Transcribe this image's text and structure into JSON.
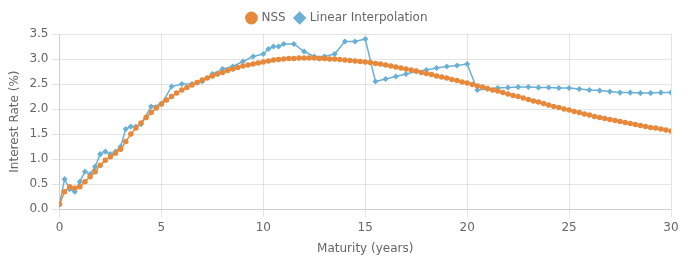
{
  "chart_data": {
    "type": "line",
    "xlabel": "Maturity (years)",
    "ylabel": "Interest Rate (%)",
    "xlim": [
      0,
      30
    ],
    "ylim": [
      0,
      3.5
    ],
    "xticks": [
      0,
      5,
      10,
      15,
      20,
      25,
      30
    ],
    "yticks": [
      {
        "value": 0,
        "label": "0.0"
      },
      0.5,
      {
        "value": 1.0,
        "label": "1.0"
      },
      1.5,
      {
        "value": 2.0,
        "label": "2.0"
      },
      2.5,
      {
        "value": 3.0,
        "label": "3.0"
      },
      3.5
    ],
    "grid": true,
    "legend": "top",
    "series": [
      {
        "name": "NSS",
        "color": "#e8883a",
        "marker": "circle",
        "x": [
          0.0,
          0.25,
          0.5,
          0.75,
          1.0,
          1.25,
          1.5,
          1.75,
          2.0,
          2.25,
          2.5,
          2.75,
          3.0,
          3.25,
          3.5,
          3.75,
          4.0,
          4.25,
          4.5,
          4.75,
          5.0,
          5.25,
          5.5,
          5.75,
          6.0,
          6.25,
          6.5,
          6.75,
          7.0,
          7.25,
          7.5,
          7.75,
          8.0,
          8.25,
          8.5,
          8.75,
          9.0,
          9.25,
          9.5,
          9.75,
          10.0,
          10.25,
          10.5,
          10.75,
          11.0,
          11.25,
          11.5,
          11.75,
          12.0,
          12.25,
          12.5,
          12.75,
          13.0,
          13.25,
          13.5,
          13.75,
          14.0,
          14.25,
          14.5,
          14.75,
          15.0,
          15.25,
          15.5,
          15.75,
          16.0,
          16.25,
          16.5,
          16.75,
          17.0,
          17.25,
          17.5,
          17.75,
          18.0,
          18.25,
          18.5,
          18.75,
          19.0,
          19.25,
          19.5,
          19.75,
          20.0,
          20.25,
          20.5,
          20.75,
          21.0,
          21.25,
          21.5,
          21.75,
          22.0,
          22.25,
          22.5,
          22.75,
          23.0,
          23.25,
          23.5,
          23.75,
          24.0,
          24.25,
          24.5,
          24.75,
          25.0,
          25.25,
          25.5,
          25.75,
          26.0,
          26.25,
          26.5,
          26.75,
          27.0,
          27.25,
          27.5,
          27.75,
          28.0,
          28.25,
          28.5,
          28.75,
          29.0,
          29.25,
          29.5,
          29.75,
          30.0
        ],
        "values": [
          0.1,
          0.35,
          0.45,
          0.42,
          0.45,
          0.55,
          0.65,
          0.75,
          0.88,
          0.98,
          1.05,
          1.12,
          1.2,
          1.35,
          1.5,
          1.62,
          1.72,
          1.83,
          1.93,
          2.02,
          2.1,
          2.18,
          2.25,
          2.32,
          2.38,
          2.43,
          2.48,
          2.53,
          2.58,
          2.62,
          2.66,
          2.7,
          2.73,
          2.77,
          2.8,
          2.83,
          2.86,
          2.88,
          2.9,
          2.92,
          2.94,
          2.96,
          2.98,
          2.99,
          3.0,
          3.01,
          3.01,
          3.02,
          3.02,
          3.02,
          3.02,
          3.01,
          3.01,
          3.0,
          3.0,
          2.99,
          2.98,
          2.97,
          2.96,
          2.95,
          2.94,
          2.93,
          2.91,
          2.9,
          2.88,
          2.86,
          2.84,
          2.82,
          2.8,
          2.78,
          2.76,
          2.73,
          2.71,
          2.69,
          2.66,
          2.64,
          2.62,
          2.59,
          2.57,
          2.54,
          2.52,
          2.49,
          2.46,
          2.44,
          2.41,
          2.38,
          2.36,
          2.33,
          2.3,
          2.27,
          2.25,
          2.22,
          2.19,
          2.16,
          2.14,
          2.11,
          2.08,
          2.05,
          2.03,
          2.0,
          1.98,
          1.95,
          1.93,
          1.9,
          1.88,
          1.85,
          1.83,
          1.81,
          1.79,
          1.77,
          1.75,
          1.73,
          1.71,
          1.69,
          1.67,
          1.65,
          1.63,
          1.62,
          1.6,
          1.58,
          1.56
        ]
      },
      {
        "name": "Linear Interpolation",
        "color": "#6ab0d4",
        "marker": "diamond",
        "x": [
          0.0,
          0.25,
          0.5,
          0.75,
          1.0,
          1.25,
          1.5,
          1.75,
          2.0,
          2.25,
          2.5,
          2.75,
          3.0,
          3.25,
          3.5,
          3.75,
          4.0,
          4.5,
          5.0,
          5.5,
          6.0,
          6.5,
          7.0,
          7.5,
          8.0,
          8.5,
          9.0,
          9.5,
          10.0,
          10.25,
          10.5,
          10.75,
          11.0,
          11.5,
          12.0,
          12.5,
          13.0,
          13.5,
          14.0,
          14.5,
          15.0,
          15.5,
          16.0,
          16.5,
          17.0,
          17.5,
          18.0,
          18.5,
          19.0,
          19.5,
          20.0,
          20.5,
          21.0,
          21.5,
          22.0,
          22.5,
          23.0,
          23.5,
          24.0,
          24.5,
          25.0,
          25.5,
          26.0,
          26.5,
          27.0,
          27.5,
          28.0,
          28.5,
          29.0,
          29.5,
          30.0
        ],
        "values": [
          0.1,
          0.6,
          0.4,
          0.35,
          0.55,
          0.75,
          0.7,
          0.85,
          1.1,
          1.15,
          1.1,
          1.15,
          1.25,
          1.6,
          1.65,
          1.65,
          1.7,
          2.05,
          2.1,
          2.45,
          2.5,
          2.5,
          2.55,
          2.7,
          2.8,
          2.85,
          2.95,
          3.05,
          3.1,
          3.2,
          3.25,
          3.25,
          3.3,
          3.3,
          3.15,
          3.05,
          3.05,
          3.1,
          3.35,
          3.35,
          3.4,
          2.55,
          2.6,
          2.65,
          2.7,
          2.75,
          2.78,
          2.82,
          2.85,
          2.87,
          2.9,
          2.38,
          2.4,
          2.42,
          2.43,
          2.44,
          2.44,
          2.43,
          2.43,
          2.42,
          2.42,
          2.4,
          2.38,
          2.37,
          2.35,
          2.33,
          2.33,
          2.32,
          2.32,
          2.33,
          2.33
        ]
      }
    ]
  }
}
